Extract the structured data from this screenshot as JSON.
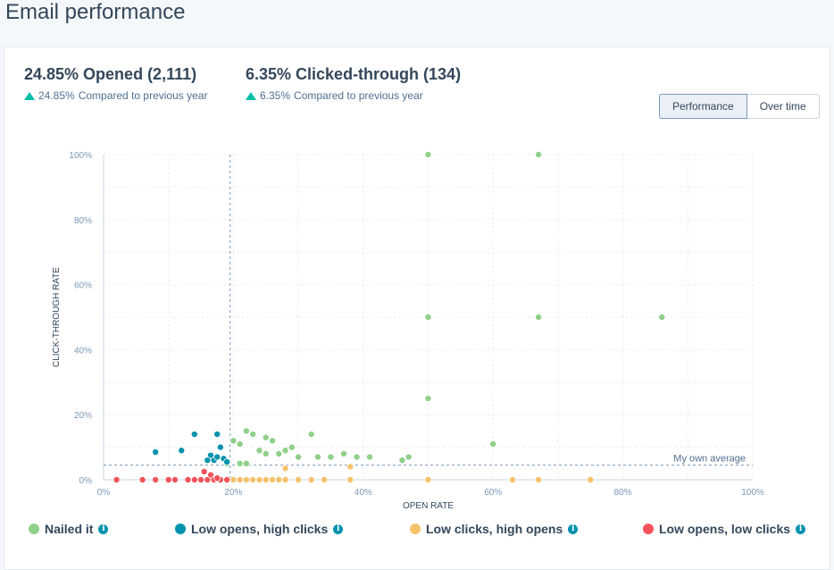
{
  "page": {
    "title": "Email performance"
  },
  "stats": [
    {
      "title": "24.85% Opened (2,111)",
      "delta": "24.85%",
      "compare": "Compared to previous year"
    },
    {
      "title": "6.35% Clicked-through (134)",
      "delta": "6.35%",
      "compare": "Compared to previous year"
    }
  ],
  "toggle": {
    "performance": "Performance",
    "over_time": "Over time",
    "active": "performance"
  },
  "colors": {
    "nailed": "#8fd08a",
    "low_opens_high_clicks": "#0092ad",
    "low_clicks_high_opens": "#f5c26b",
    "low_both": "#f2545b",
    "up_arrow": "#00bda5"
  },
  "chart_data": {
    "type": "scatter",
    "xlabel": "OPEN RATE",
    "ylabel": "CLICK-THROUGH RATE",
    "xlim": [
      0,
      100
    ],
    "ylim": [
      0,
      100
    ],
    "x_ticks": [
      "0%",
      "20%",
      "40%",
      "60%",
      "80%",
      "100%"
    ],
    "y_ticks": [
      "0%",
      "20%",
      "40%",
      "60%",
      "80%",
      "100%"
    ],
    "grid": true,
    "open_rate_average_line": 19.5,
    "own_average_line": 4.5,
    "own_average_label": "My own average",
    "series": [
      {
        "name": "Nailed it",
        "color": "#8fd08a",
        "points": [
          [
            50,
            100
          ],
          [
            67,
            100
          ],
          [
            50,
            50
          ],
          [
            67,
            50
          ],
          [
            86,
            50
          ],
          [
            50,
            25
          ],
          [
            60,
            11
          ],
          [
            20,
            12
          ],
          [
            21,
            11
          ],
          [
            22,
            15
          ],
          [
            23,
            14
          ],
          [
            25,
            13
          ],
          [
            26,
            12
          ],
          [
            28,
            9
          ],
          [
            29,
            10
          ],
          [
            32,
            14
          ],
          [
            24,
            9
          ],
          [
            25,
            8
          ],
          [
            27,
            8
          ],
          [
            30,
            7
          ],
          [
            33,
            7
          ],
          [
            35,
            7
          ],
          [
            37,
            8
          ],
          [
            39,
            7
          ],
          [
            41,
            7
          ],
          [
            47,
            7
          ],
          [
            21,
            5
          ],
          [
            22,
            5
          ],
          [
            46,
            6
          ],
          [
            19,
            5
          ]
        ]
      },
      {
        "name": "Low opens, high clicks",
        "color": "#0092ad",
        "points": [
          [
            8,
            8.5
          ],
          [
            12,
            9
          ],
          [
            14,
            14
          ],
          [
            17.5,
            14
          ],
          [
            18,
            10
          ],
          [
            16.5,
            7.5
          ],
          [
            17,
            6
          ],
          [
            18.5,
            6.5
          ],
          [
            19,
            5.5
          ],
          [
            17.5,
            7
          ],
          [
            16,
            6
          ]
        ]
      },
      {
        "name": "Low clicks, high opens",
        "color": "#f5c26b",
        "points": [
          [
            20,
            0
          ],
          [
            21,
            0
          ],
          [
            22,
            0
          ],
          [
            23,
            0
          ],
          [
            24,
            0
          ],
          [
            25,
            0
          ],
          [
            26,
            0
          ],
          [
            27,
            0
          ],
          [
            28,
            0
          ],
          [
            30,
            0
          ],
          [
            32,
            0
          ],
          [
            34,
            0
          ],
          [
            38,
            0
          ],
          [
            28,
            3.5
          ],
          [
            38,
            4
          ],
          [
            50,
            0
          ],
          [
            63,
            0
          ],
          [
            67,
            0
          ],
          [
            75,
            0
          ]
        ]
      },
      {
        "name": "Low opens, low clicks",
        "color": "#f2545b",
        "points": [
          [
            2,
            0
          ],
          [
            6,
            0
          ],
          [
            8,
            0
          ],
          [
            10,
            0
          ],
          [
            11,
            0
          ],
          [
            13,
            0
          ],
          [
            14,
            0
          ],
          [
            15,
            0
          ],
          [
            16,
            0
          ],
          [
            17,
            0
          ],
          [
            18,
            0
          ],
          [
            19,
            0
          ],
          [
            15.5,
            2.5
          ],
          [
            16.5,
            1.5
          ],
          [
            17.5,
            0.5
          ]
        ]
      }
    ]
  },
  "legend": [
    {
      "label": "Nailed it"
    },
    {
      "label": "Low opens, high clicks"
    },
    {
      "label": "Low clicks, high opens"
    },
    {
      "label": "Low opens, low clicks"
    }
  ]
}
